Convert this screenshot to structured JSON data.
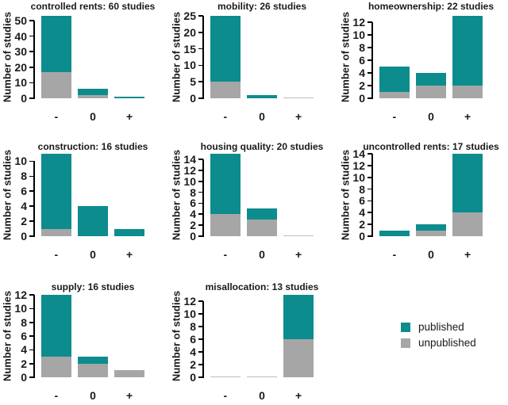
{
  "figure": {
    "ylabel": "Number of studies",
    "x_categories": [
      "-",
      "0",
      "+"
    ],
    "colors": {
      "published": "#0d8c8e",
      "unpublished": "#a6a6a6",
      "zero_bar_line": "#bdbdbd",
      "axis": "#000000",
      "text": "#1a1a1a",
      "background": "#ffffff"
    },
    "legend": {
      "items": [
        {
          "label": "published",
          "color": "#0d8c8e"
        },
        {
          "label": "unpublished",
          "color": "#a6a6a6"
        }
      ]
    }
  },
  "chart_data": [
    {
      "type": "bar",
      "stacked": true,
      "title": "controlled rents: 60 studies",
      "categories": [
        "-",
        "0",
        "+"
      ],
      "series": [
        {
          "name": "unpublished",
          "values": [
            17,
            2,
            0
          ]
        },
        {
          "name": "published",
          "values": [
            36,
            4,
            1
          ]
        }
      ],
      "totals": [
        53,
        6,
        1
      ],
      "yticks": [
        0,
        10,
        20,
        30,
        40,
        50
      ],
      "ylim": [
        0,
        53
      ],
      "ylabel": "Number of studies",
      "grid_position": [
        0,
        0
      ]
    },
    {
      "type": "bar",
      "stacked": true,
      "title": "mobility: 26 studies",
      "categories": [
        "-",
        "0",
        "+"
      ],
      "series": [
        {
          "name": "unpublished",
          "values": [
            5,
            0,
            0
          ]
        },
        {
          "name": "published",
          "values": [
            20,
            1,
            0
          ]
        }
      ],
      "totals": [
        25,
        1,
        0
      ],
      "yticks": [
        0,
        5,
        10,
        15,
        20,
        25
      ],
      "ylim": [
        0,
        25
      ],
      "ylabel": "Number of studies",
      "grid_position": [
        0,
        1
      ]
    },
    {
      "type": "bar",
      "stacked": true,
      "title": "homeownership: 22 studies",
      "categories": [
        "-",
        "0",
        "+"
      ],
      "series": [
        {
          "name": "unpublished",
          "values": [
            1,
            2,
            2
          ]
        },
        {
          "name": "published",
          "values": [
            4,
            2,
            11
          ]
        }
      ],
      "totals": [
        5,
        4,
        13
      ],
      "yticks": [
        0,
        2,
        4,
        6,
        8,
        10,
        12
      ],
      "ylim": [
        0,
        13
      ],
      "ylabel": "Number of studies",
      "grid_position": [
        0,
        2
      ]
    },
    {
      "type": "bar",
      "stacked": true,
      "title": "construction: 16 studies",
      "categories": [
        "-",
        "0",
        "+"
      ],
      "series": [
        {
          "name": "unpublished",
          "values": [
            1,
            0,
            0
          ]
        },
        {
          "name": "published",
          "values": [
            10,
            4,
            1
          ]
        }
      ],
      "totals": [
        11,
        4,
        1
      ],
      "yticks": [
        0,
        2,
        4,
        6,
        8,
        10
      ],
      "ylim": [
        0,
        11
      ],
      "ylabel": "Number of studies",
      "grid_position": [
        1,
        0
      ]
    },
    {
      "type": "bar",
      "stacked": true,
      "title": "housing quality: 20 studies",
      "categories": [
        "-",
        "0",
        "+"
      ],
      "series": [
        {
          "name": "unpublished",
          "values": [
            4,
            3,
            0
          ]
        },
        {
          "name": "published",
          "values": [
            11,
            2,
            0
          ]
        }
      ],
      "totals": [
        15,
        5,
        0
      ],
      "yticks": [
        0,
        2,
        4,
        6,
        8,
        10,
        12,
        14
      ],
      "ylim": [
        0,
        15
      ],
      "ylabel": "Number of studies",
      "grid_position": [
        1,
        1
      ]
    },
    {
      "type": "bar",
      "stacked": true,
      "title": "uncontrolled rents: 17 studies",
      "categories": [
        "-",
        "0",
        "+"
      ],
      "series": [
        {
          "name": "unpublished",
          "values": [
            0,
            1,
            4
          ]
        },
        {
          "name": "published",
          "values": [
            1,
            1,
            10
          ]
        }
      ],
      "totals": [
        1,
        2,
        14
      ],
      "yticks": [
        0,
        2,
        4,
        6,
        8,
        10,
        12,
        14
      ],
      "ylim": [
        0,
        14
      ],
      "ylabel": "Number of studies",
      "grid_position": [
        1,
        2
      ]
    },
    {
      "type": "bar",
      "stacked": true,
      "title": "supply: 16 studies",
      "categories": [
        "-",
        "0",
        "+"
      ],
      "series": [
        {
          "name": "unpublished",
          "values": [
            3,
            2,
            1
          ]
        },
        {
          "name": "published",
          "values": [
            9,
            1,
            0
          ]
        }
      ],
      "totals": [
        12,
        3,
        1
      ],
      "yticks": [
        0,
        2,
        4,
        6,
        8,
        10,
        12
      ],
      "ylim": [
        0,
        12
      ],
      "ylabel": "Number of studies",
      "grid_position": [
        2,
        0
      ]
    },
    {
      "type": "bar",
      "stacked": true,
      "title": "misallocation: 13 studies",
      "categories": [
        "-",
        "0",
        "+"
      ],
      "series": [
        {
          "name": "unpublished",
          "values": [
            0,
            0,
            6
          ]
        },
        {
          "name": "published",
          "values": [
            0,
            0,
            7
          ]
        }
      ],
      "totals": [
        0,
        0,
        13
      ],
      "yticks": [
        0,
        2,
        4,
        6,
        8,
        10,
        12
      ],
      "ylim": [
        0,
        13
      ],
      "ylabel": "Number of studies",
      "grid_position": [
        2,
        1
      ]
    }
  ]
}
